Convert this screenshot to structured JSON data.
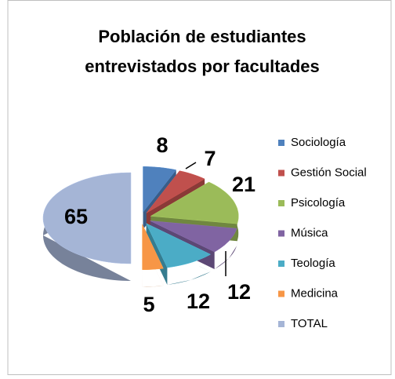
{
  "chart_data": {
    "type": "pie3d",
    "title": [
      "Población de estudiantes",
      "entrevistados por facultades"
    ],
    "categories": [
      "Sociología",
      "Gestión Social",
      "Psicología",
      "Música",
      "Teología",
      "Medicina",
      "TOTAL"
    ],
    "values": [
      8,
      7,
      21,
      12,
      12,
      5,
      65
    ],
    "colors": [
      "#4f81bd",
      "#c0504d",
      "#9bbb59",
      "#8064a2",
      "#4bacc6",
      "#f79646",
      "#a5b5d6"
    ],
    "legend": "right"
  }
}
